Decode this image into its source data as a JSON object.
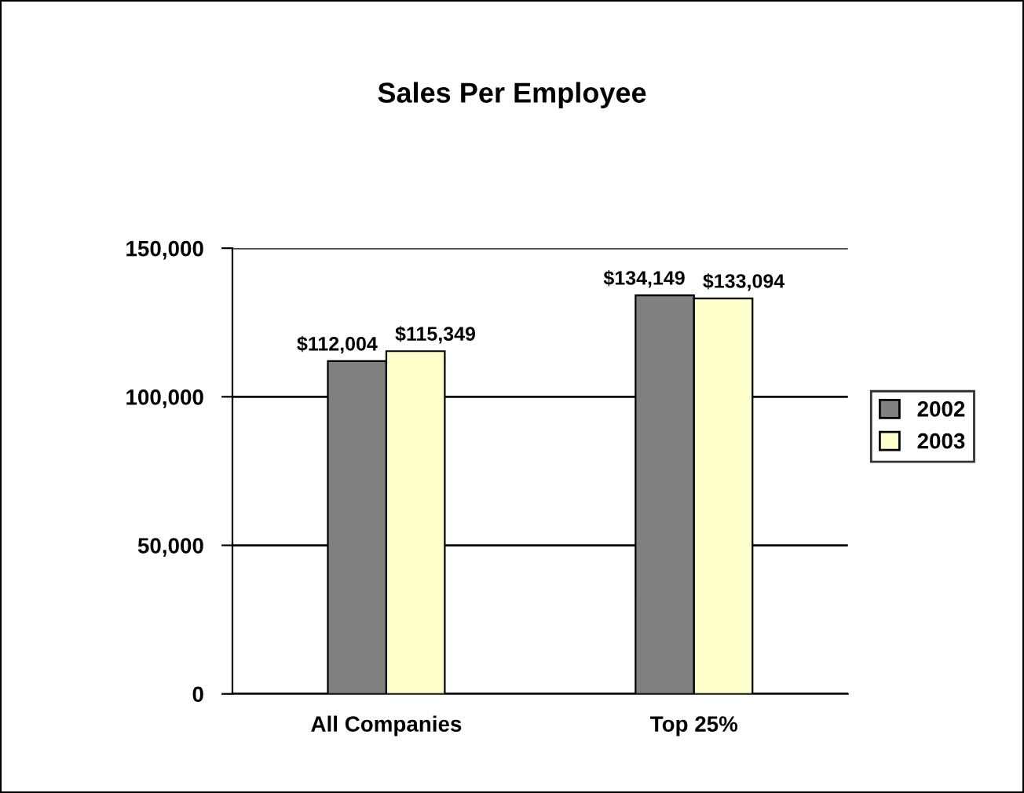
{
  "chart_data": {
    "type": "bar",
    "title": "Sales Per Employee",
    "categories": [
      "All Companies",
      "Top 25%"
    ],
    "series": [
      {
        "name": "2002",
        "color": "#808080",
        "values": [
          112004,
          134149
        ],
        "value_labels": [
          "$112,004",
          "$134,149"
        ]
      },
      {
        "name": "2003",
        "color": "#ffffcc",
        "values": [
          115349,
          133094
        ],
        "value_labels": [
          "$115,349",
          "$133,094"
        ]
      }
    ],
    "ylim": [
      0,
      150000
    ],
    "yticks": [
      {
        "value": 0,
        "label": "0"
      },
      {
        "value": 50000,
        "label": "50,000"
      },
      {
        "value": 100000,
        "label": "100,000"
      },
      {
        "value": 150000,
        "label": "150,000"
      }
    ],
    "grid": "y",
    "legend": "right"
  }
}
